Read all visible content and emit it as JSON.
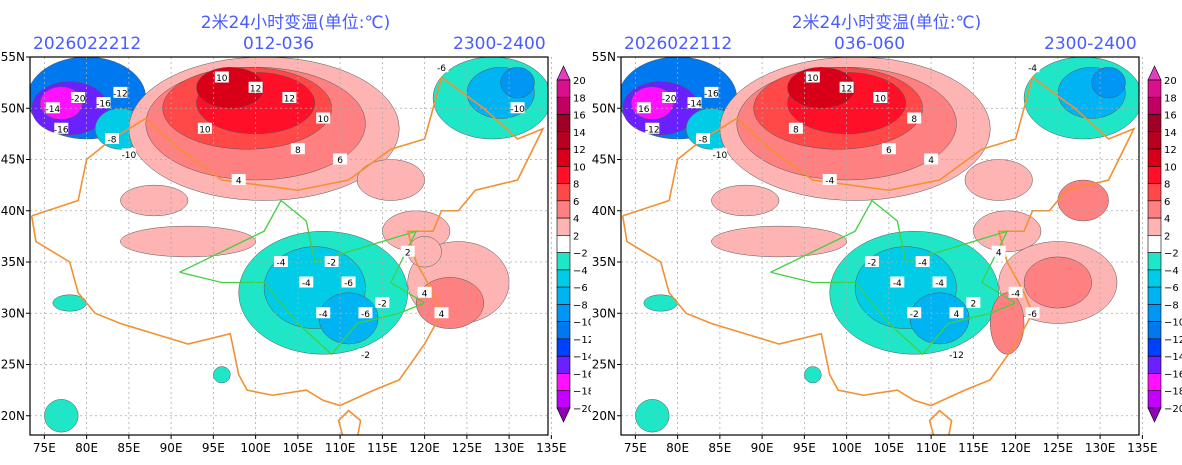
{
  "panels": [
    {
      "title": "2米24小时变温(单位:℃)",
      "init_time": "2026022212",
      "forecast_range": "012-036",
      "valid_range": "2300-2400",
      "contour_labels": [
        "-14",
        "-20",
        "-16",
        "-12",
        "-16",
        "-8",
        "-10",
        "10",
        "12",
        "10",
        "12",
        "10",
        "8",
        "6",
        "4",
        "-4",
        "-2",
        "-4",
        "-6",
        "-4",
        "-6",
        "-2",
        "2",
        "4",
        "4",
        "-2",
        "-6",
        "-10"
      ]
    },
    {
      "title": "2米24小时变温(单位:℃)",
      "init_time": "2026022112",
      "forecast_range": "036-060",
      "valid_range": "2300-2400",
      "contour_labels": [
        "16",
        "-20",
        "-14",
        "-16",
        "-12",
        "-8",
        "-10",
        "10",
        "12",
        "8",
        "10",
        "8",
        "6",
        "4",
        "-4",
        "-2",
        "-4",
        "-4",
        "-4",
        "-2",
        "4",
        "2",
        "4",
        "-4",
        "-6",
        "-12",
        "-4"
      ]
    }
  ],
  "axes": {
    "lon_labels": [
      "75E",
      "80E",
      "85E",
      "90E",
      "95E",
      "100E",
      "105E",
      "110E",
      "115E",
      "120E",
      "125E",
      "130E",
      "135E"
    ],
    "lat_labels": [
      "20N",
      "25N",
      "30N",
      "35N",
      "40N",
      "45N",
      "50N",
      "55N"
    ]
  },
  "colorbar": {
    "levels": [
      "20",
      "18",
      "16",
      "14",
      "12",
      "10",
      "8",
      "6",
      "4",
      "2",
      "−2",
      "−4",
      "−6",
      "−8",
      "−10",
      "−12",
      "−14",
      "−16",
      "−18",
      "−20"
    ],
    "colors": [
      "#e040c0",
      "#d8108c",
      "#c00060",
      "#a00028",
      "#b80020",
      "#d80018",
      "#ff1028",
      "#ff4848",
      "#ff8080",
      "#ffb4b4",
      "#ffffff",
      "#20e6c8",
      "#00cce8",
      "#00b4f4",
      "#0096f4",
      "#0078f0",
      "#0040ff",
      "#6a20ff",
      "#ff10ff",
      "#c400ff",
      "#9000b8"
    ]
  }
}
